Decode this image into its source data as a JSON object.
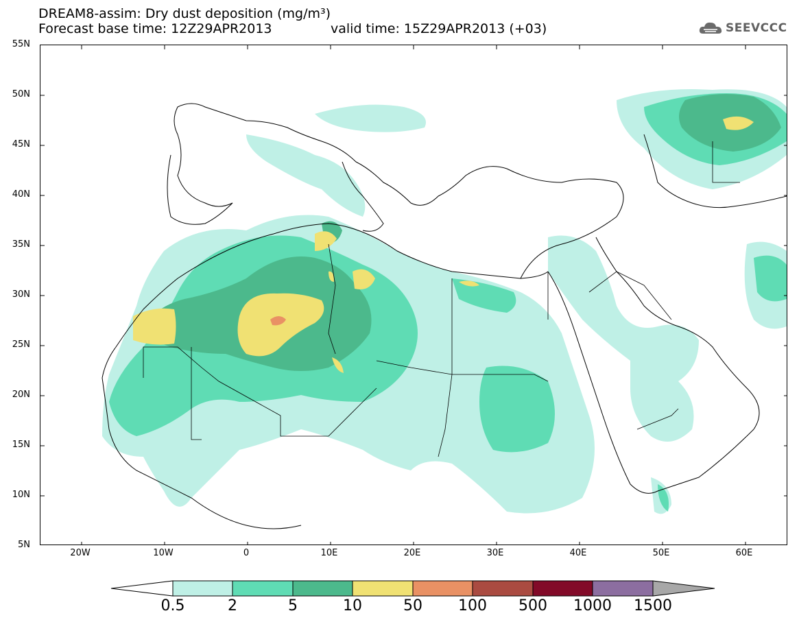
{
  "header": {
    "title": "DREAM8-assim: Dry dust deposition (mg/m³)",
    "base_time": "Forecast base time: 12Z29APR2013",
    "valid_time": "valid time: 15Z29APR2013 (+03)",
    "logo_text": "SEEVCCC",
    "logo_icon": "cloud-logo-icon"
  },
  "map": {
    "lon_range": [
      -25,
      65
    ],
    "lat_range": [
      5,
      55
    ],
    "lat_labels": [
      "55N",
      "50N",
      "45N",
      "40N",
      "35N",
      "30N",
      "25N",
      "20N",
      "15N",
      "10N",
      "5N"
    ],
    "lon_labels": [
      "20W",
      "10W",
      "0",
      "10E",
      "20E",
      "30E",
      "40E",
      "50E",
      "60E"
    ]
  },
  "colorbar": {
    "thresholds": [
      "0.5",
      "2",
      "5",
      "10",
      "50",
      "100",
      "500",
      "1000",
      "1500"
    ],
    "colors": [
      "#bff0e6",
      "#5fdcb4",
      "#4cb98c",
      "#f0e173",
      "#e99164",
      "#aa4b41",
      "#820a28",
      "#8c6ea0",
      "#a8a8a8"
    ]
  }
}
